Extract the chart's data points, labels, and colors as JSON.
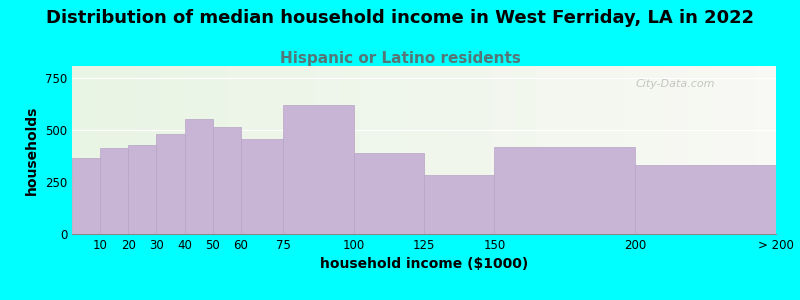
{
  "title": "Distribution of median household income in West Ferriday, LA in 2022",
  "subtitle": "Hispanic or Latino residents",
  "xlabel": "household income ($1000)",
  "ylabel": "households",
  "background_color": "#00FFFF",
  "bar_color": "#c8b4d4",
  "bar_edge_color": "#b8a4c4",
  "bin_edges": [
    0,
    10,
    20,
    30,
    40,
    50,
    60,
    75,
    100,
    125,
    150,
    200,
    250
  ],
  "bin_labels": [
    "10",
    "20",
    "30",
    "40",
    "50",
    "60",
    "75",
    "100",
    "125",
    "150",
    "200",
    "> 200"
  ],
  "values": [
    365,
    415,
    430,
    480,
    555,
    515,
    460,
    620,
    390,
    285,
    420,
    335
  ],
  "yticks": [
    0,
    250,
    500,
    750
  ],
  "ylim": [
    0,
    810
  ],
  "title_fontsize": 13,
  "subtitle_fontsize": 11,
  "subtitle_color": "#557777",
  "axis_label_fontsize": 10,
  "watermark": "City-Data.com"
}
